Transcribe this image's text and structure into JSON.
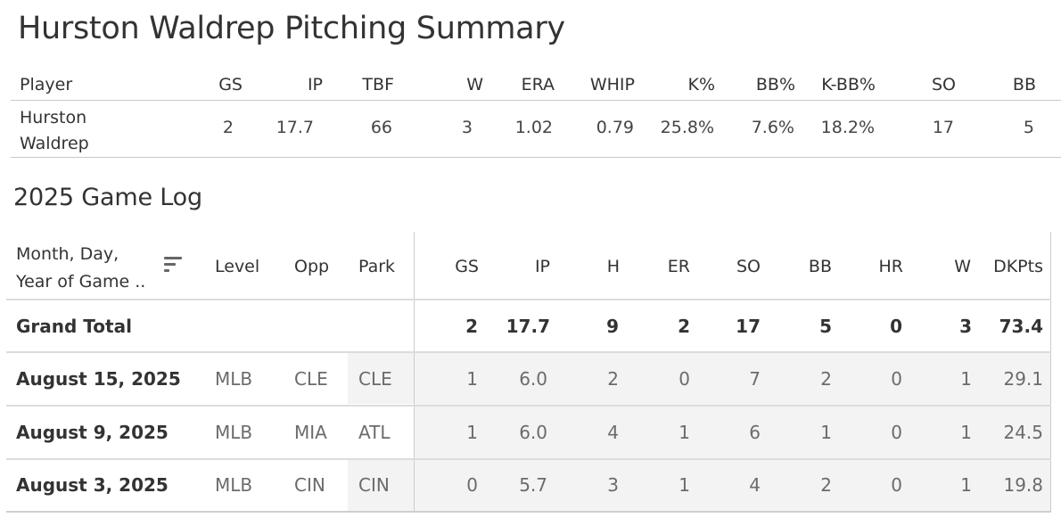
{
  "title": "Hurston Waldrep Pitching Summary",
  "summary": {
    "headers": [
      "Player",
      "GS",
      "IP",
      "TBF",
      "W",
      "ERA",
      "WHIP",
      "K%",
      "BB%",
      "K-BB%",
      "SO",
      "BB"
    ],
    "row": {
      "player_line1": "Hurston",
      "player_line2": "Waldrep",
      "values": [
        "2",
        "17.7",
        "66",
        "3",
        "1.02",
        "0.79",
        "25.8%",
        "7.6%",
        "18.2%",
        "17",
        "5"
      ]
    }
  },
  "game_log": {
    "title": "2025 Game Log",
    "date_header_line1": "Month, Day,",
    "date_header_line2": "Year of Game ..",
    "headers": [
      "Level",
      "Opp",
      "Park",
      "GS",
      "IP",
      "H",
      "ER",
      "SO",
      "BB",
      "HR",
      "W",
      "DKPts"
    ],
    "grand_total": {
      "label": "Grand Total",
      "values": [
        "2",
        "17.7",
        "9",
        "2",
        "17",
        "5",
        "0",
        "3",
        "73.4"
      ]
    },
    "rows": [
      {
        "date": "August 15, 2025",
        "level": "MLB",
        "opp": "CLE",
        "park": "CLE",
        "values": [
          "1",
          "6.0",
          "2",
          "0",
          "7",
          "2",
          "0",
          "1",
          "29.1"
        ]
      },
      {
        "date": "August 9, 2025",
        "level": "MLB",
        "opp": "MIA",
        "park": "ATL",
        "values": [
          "1",
          "6.0",
          "4",
          "1",
          "6",
          "1",
          "0",
          "1",
          "24.5"
        ]
      },
      {
        "date": "August 3, 2025",
        "level": "MLB",
        "opp": "CIN",
        "park": "CIN",
        "values": [
          "0",
          "5.7",
          "3",
          "1",
          "4",
          "2",
          "0",
          "1",
          "19.8"
        ]
      }
    ]
  },
  "icons": {
    "sort": "sort-descending-icon"
  }
}
